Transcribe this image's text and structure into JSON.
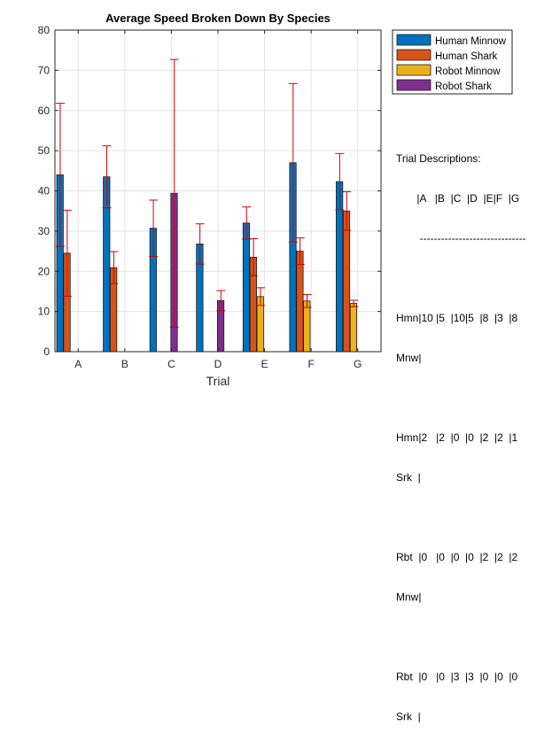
{
  "chart_data": {
    "type": "bar",
    "title": "Average Speed Broken Down By Species",
    "xlabel": "Trial",
    "ylabel": "",
    "ylim": [
      0,
      80
    ],
    "yticks": [
      0,
      10,
      20,
      30,
      40,
      50,
      60,
      70,
      80
    ],
    "grid": true,
    "legend_position": "top-right-outside",
    "categories": [
      "A",
      "B",
      "C",
      "D",
      "E",
      "F",
      "G"
    ],
    "series": [
      {
        "name": "Human Minnow",
        "color": "#0072BD",
        "values": [
          44,
          43.5,
          30.7,
          26.8,
          32,
          47,
          42.3
        ],
        "err": [
          17.8,
          7.7,
          7,
          5,
          4,
          19.7,
          7
        ]
      },
      {
        "name": "Human Shark",
        "color": "#D95319",
        "values": [
          24.5,
          20.9,
          0,
          0,
          23.5,
          25,
          35
        ],
        "err": [
          10.7,
          4,
          0,
          0,
          4.6,
          3.3,
          4.8
        ]
      },
      {
        "name": "Robot Minnow",
        "color": "#EDB120",
        "values": [
          0,
          0,
          0,
          0,
          13.7,
          12.6,
          12
        ],
        "err": [
          0,
          0,
          0,
          0,
          2.2,
          1.6,
          0.8
        ]
      },
      {
        "name": "Robot Shark",
        "color": "#7E2F8E",
        "values": [
          0,
          0,
          39.4,
          12.7,
          0,
          0,
          0
        ],
        "err": [
          0,
          0,
          33.3,
          2.5,
          0,
          0,
          0
        ]
      }
    ],
    "error_bar_color": "#D00000"
  },
  "descriptions": {
    "heading": "Trial Descriptions:",
    "lines": [
      "       |A   |B  |C  |D  |E|F  |G",
      "        ------------------------------",
      "Hmn|10 |5  |10|5  |8  |3  |8",
      "Mnw|",
      "",
      "Hmn|2   |2  |0  |0  |2  |2  |1",
      "Srk  |",
      "",
      "Rbt  |0   |0  |0  |0  |2  |2  |2",
      "Mnw|",
      "",
      "Rbt  |0   |0  |3  |3  |0  |0  |0",
      "Srk  |"
    ]
  }
}
